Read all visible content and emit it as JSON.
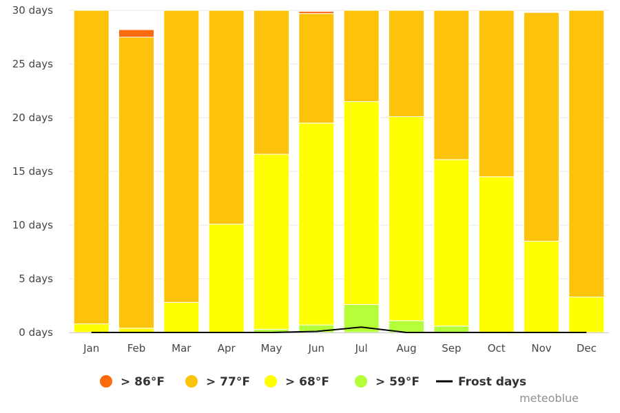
{
  "chart_data": {
    "type": "bar",
    "stacked": true,
    "categories": [
      "Jan",
      "Feb",
      "Mar",
      "Apr",
      "May",
      "Jun",
      "Jul",
      "Aug",
      "Sep",
      "Oct",
      "Nov",
      "Dec"
    ],
    "y_axis": {
      "min": 0,
      "max": 30,
      "ticks": [
        0,
        5,
        10,
        15,
        20,
        25,
        30
      ],
      "tick_suffix": " days"
    },
    "grid": true,
    "series": [
      {
        "name": "> 59°F",
        "color": "#b5ff3a",
        "values": [
          0,
          0,
          0,
          0,
          0.3,
          0.7,
          2.6,
          1.1,
          0.6,
          0,
          0,
          0
        ]
      },
      {
        "name": "> 68°F",
        "color": "#ffff00",
        "values": [
          0.8,
          0.4,
          2.8,
          10.1,
          16.3,
          18.8,
          18.9,
          19.0,
          15.5,
          14.5,
          8.5,
          3.3
        ]
      },
      {
        "name": "> 77°F",
        "color": "#fcc30a",
        "values": [
          29.2,
          27.1,
          27.2,
          19.9,
          13.4,
          10.2,
          8.5,
          9.9,
          13.9,
          15.5,
          21.3,
          26.7
        ]
      },
      {
        "name": "> 86°F",
        "color": "#fb6a0c",
        "values": [
          0,
          0.7,
          0,
          0,
          0,
          0.2,
          0,
          0,
          0,
          0,
          0,
          0
        ]
      }
    ],
    "line_series": {
      "name": "Frost days",
      "color": "#000000",
      "values": [
        0,
        0,
        0,
        0,
        0,
        0.1,
        0.5,
        0,
        0,
        0,
        0,
        0
      ]
    },
    "legend": {
      "position": "bottom",
      "items": [
        {
          "label": "> 86°F",
          "color": "#fb6a0c",
          "symbol": "circle"
        },
        {
          "label": "> 77°F",
          "color": "#fcc30a",
          "symbol": "circle"
        },
        {
          "label": "> 68°F",
          "color": "#ffff00",
          "symbol": "circle"
        },
        {
          "label": "> 59°F",
          "color": "#b5ff3a",
          "symbol": "circle"
        },
        {
          "label": "Frost days",
          "color": "#000000",
          "symbol": "line"
        }
      ]
    },
    "credit": "meteoblue"
  }
}
